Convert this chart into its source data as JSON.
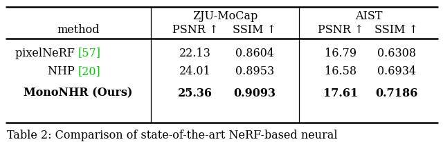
{
  "title": "Table 2: Comparison of state-of-the-art NeRF-based neural",
  "background_color": "#ffffff",
  "text_color": "#000000",
  "ref_color": "#00cc00",
  "font_size": 11.5,
  "title_font_size": 11.5,
  "rows": [
    {
      "method_base": "pixelNeRF ",
      "method_ref": "[57]",
      "zju_psnr": "22.13",
      "zju_ssim": "0.8604",
      "aist_psnr": "16.79",
      "aist_ssim": "0.6308",
      "bold": false
    },
    {
      "method_base": "NHP ",
      "method_ref": "[20]",
      "zju_psnr": "24.01",
      "zju_ssim": "0.8953",
      "aist_psnr": "16.58",
      "aist_ssim": "0.6934",
      "bold": false
    },
    {
      "method_base": "MonoNHR (Ours)",
      "method_ref": "",
      "zju_psnr": "25.36",
      "zju_ssim": "0.9093",
      "aist_psnr": "17.61",
      "aist_ssim": "0.7186",
      "bold": true
    }
  ]
}
